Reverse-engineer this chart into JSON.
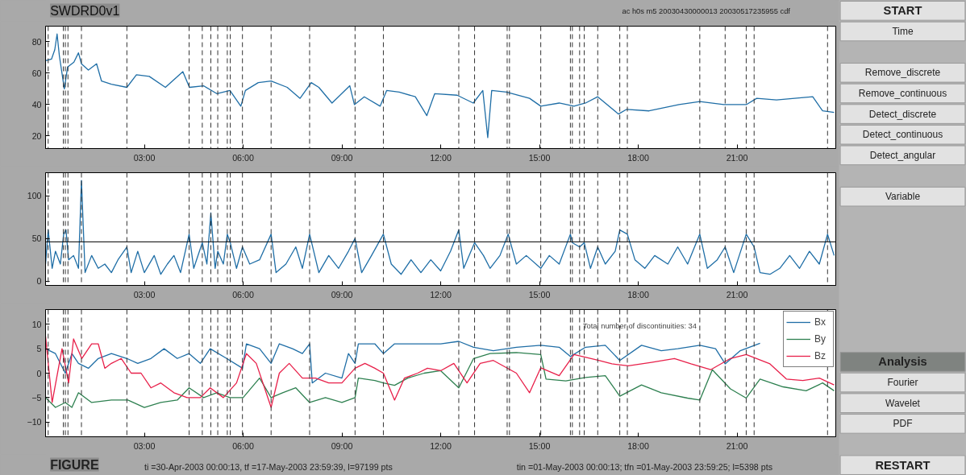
{
  "chart_data": [
    {
      "type": "line",
      "title": "SWDRD0v1",
      "subtitle": "ac h0s m5 20030430000013 20030517235955 cdf",
      "xlim": [
        0,
        24
      ],
      "ylim": [
        12,
        90
      ],
      "yticks": [
        20,
        40,
        60,
        80
      ],
      "xticks": [
        {
          "value": 3,
          "label": "03:00"
        },
        {
          "value": 6,
          "label": "06:00"
        },
        {
          "value": 9,
          "label": "09:00"
        },
        {
          "value": 12,
          "label": "12:00"
        },
        {
          "value": 15,
          "label": "15:00"
        },
        {
          "value": 18,
          "label": "18:00"
        },
        {
          "value": 21,
          "label": "21:00"
        }
      ],
      "grid": false,
      "legend": false,
      "marker": "none",
      "line_style": "solid",
      "series": [
        {
          "color": "#1f6ea6",
          "x": [
            0,
            0.18,
            0.28,
            0.35,
            0.42,
            0.57,
            0.67,
            0.86,
            1.0,
            1.09,
            1.3,
            1.55,
            1.7,
            2.0,
            2.47,
            2.76,
            3.15,
            3.64,
            4.17,
            4.37,
            4.8,
            5.2,
            5.6,
            5.93,
            6.07,
            6.46,
            6.85,
            7.34,
            7.73,
            8.07,
            8.3,
            8.7,
            9.24,
            9.38,
            9.68,
            10.16,
            10.36,
            10.74,
            11.23,
            11.58,
            11.82,
            12.5,
            12.99,
            13.28,
            13.43,
            13.55,
            14.0,
            14.7,
            15.04,
            15.6,
            16.05,
            16.4,
            16.77,
            17.4,
            17.65,
            18.33,
            19.24,
            19.87,
            20.6,
            21.28,
            21.6,
            22.2,
            23.3,
            23.6,
            23.95
          ],
          "values": [
            68,
            69,
            75,
            85,
            71,
            50,
            64,
            67,
            73,
            66,
            62,
            66,
            55,
            53,
            51,
            59,
            58,
            51,
            61,
            51,
            52,
            47,
            49,
            39,
            49,
            54,
            55,
            51,
            44,
            54,
            51,
            41,
            52,
            40,
            45,
            39,
            49,
            48,
            45,
            33,
            47,
            46,
            41,
            49,
            19,
            49,
            48,
            44,
            39,
            41,
            39,
            41,
            45,
            34,
            37,
            36,
            40,
            42,
            40,
            40,
            44,
            43,
            45,
            36,
            35
          ]
        }
      ],
      "ref_lines": [
        {
          "axis": "x",
          "value": 0.08,
          "color": "#333333",
          "line_style": "dashed"
        },
        {
          "axis": "x",
          "value": 0.54,
          "color": "#333333",
          "line_style": "dashed"
        },
        {
          "axis": "x",
          "value": 0.6,
          "color": "#333333",
          "line_style": "dashed"
        },
        {
          "axis": "x",
          "value": 0.68,
          "color": "#333333",
          "line_style": "dashed"
        },
        {
          "axis": "x",
          "value": 1.09,
          "color": "#333333",
          "line_style": "dashed"
        },
        {
          "axis": "x",
          "value": 2.47,
          "color": "#333333",
          "line_style": "dashed"
        },
        {
          "axis": "x",
          "value": 4.36,
          "color": "#333333",
          "line_style": "dashed"
        },
        {
          "axis": "x",
          "value": 4.76,
          "color": "#333333",
          "line_style": "dashed"
        },
        {
          "axis": "x",
          "value": 5.02,
          "color": "#333333",
          "line_style": "dashed"
        },
        {
          "axis": "x",
          "value": 5.23,
          "color": "#333333",
          "line_style": "dashed"
        },
        {
          "axis": "x",
          "value": 5.52,
          "color": "#333333",
          "line_style": "dashed"
        },
        {
          "axis": "x",
          "value": 5.61,
          "color": "#333333",
          "line_style": "dashed"
        },
        {
          "axis": "x",
          "value": 5.98,
          "color": "#333333",
          "line_style": "dashed"
        },
        {
          "axis": "x",
          "value": 6.85,
          "color": "#333333",
          "line_style": "dashed"
        },
        {
          "axis": "x",
          "value": 8.02,
          "color": "#333333",
          "line_style": "dashed"
        },
        {
          "axis": "x",
          "value": 9.4,
          "color": "#333333",
          "line_style": "dashed"
        },
        {
          "axis": "x",
          "value": 10.26,
          "color": "#333333",
          "line_style": "dashed"
        },
        {
          "axis": "x",
          "value": 12.55,
          "color": "#333333",
          "line_style": "dashed"
        },
        {
          "axis": "x",
          "value": 13.03,
          "color": "#333333",
          "line_style": "dashed"
        },
        {
          "axis": "x",
          "value": 14.02,
          "color": "#333333",
          "line_style": "dashed"
        },
        {
          "axis": "x",
          "value": 14.09,
          "color": "#333333",
          "line_style": "dashed"
        },
        {
          "axis": "x",
          "value": 15.04,
          "color": "#333333",
          "line_style": "dashed"
        },
        {
          "axis": "x",
          "value": 15.94,
          "color": "#333333",
          "line_style": "dashed"
        },
        {
          "axis": "x",
          "value": 16.0,
          "color": "#333333",
          "line_style": "dashed"
        },
        {
          "axis": "x",
          "value": 16.22,
          "color": "#333333",
          "line_style": "dashed"
        },
        {
          "axis": "x",
          "value": 16.36,
          "color": "#333333",
          "line_style": "dashed"
        },
        {
          "axis": "x",
          "value": 16.77,
          "color": "#333333",
          "line_style": "dashed"
        },
        {
          "axis": "x",
          "value": 17.44,
          "color": "#333333",
          "line_style": "dashed"
        },
        {
          "axis": "x",
          "value": 17.67,
          "color": "#333333",
          "line_style": "dashed"
        },
        {
          "axis": "x",
          "value": 19.87,
          "color": "#333333",
          "line_style": "dashed"
        },
        {
          "axis": "x",
          "value": 20.64,
          "color": "#333333",
          "line_style": "dashed"
        },
        {
          "axis": "x",
          "value": 21.28,
          "color": "#333333",
          "line_style": "dashed"
        },
        {
          "axis": "x",
          "value": 21.52,
          "color": "#333333",
          "line_style": "dashed"
        },
        {
          "axis": "x",
          "value": 23.75,
          "color": "#333333",
          "line_style": "dashed"
        }
      ]
    },
    {
      "type": "line",
      "xlim": [
        0,
        24
      ],
      "ylim": [
        -5,
        127
      ],
      "yticks": [
        0,
        50,
        100
      ],
      "xticks": [
        {
          "value": 3,
          "label": "03:00"
        },
        {
          "value": 6,
          "label": "06:00"
        },
        {
          "value": 9,
          "label": "09:00"
        },
        {
          "value": 12,
          "label": "12:00"
        },
        {
          "value": 15,
          "label": "15:00"
        },
        {
          "value": 18,
          "label": "18:00"
        },
        {
          "value": 21,
          "label": "21:00"
        }
      ],
      "grid": false,
      "legend": false,
      "marker": "none",
      "line_style": "solid",
      "series": [
        {
          "color": "#1f6ea6",
          "x": [
            0,
            0.08,
            0.2,
            0.3,
            0.45,
            0.55,
            0.62,
            0.7,
            0.85,
            1.0,
            1.09,
            1.2,
            1.4,
            1.6,
            1.8,
            2.0,
            2.2,
            2.47,
            2.6,
            2.8,
            3.0,
            3.3,
            3.5,
            3.7,
            3.9,
            4.1,
            4.36,
            4.5,
            4.76,
            4.9,
            5.02,
            5.15,
            5.23,
            5.4,
            5.52,
            5.61,
            5.8,
            5.98,
            6.2,
            6.5,
            6.85,
            7.0,
            7.3,
            7.6,
            7.8,
            8.02,
            8.3,
            8.6,
            8.9,
            9.2,
            9.4,
            9.6,
            9.9,
            10.26,
            10.5,
            10.8,
            11.1,
            11.4,
            11.7,
            12.0,
            12.3,
            12.55,
            12.7,
            13.03,
            13.3,
            13.5,
            13.8,
            14.05,
            14.3,
            14.6,
            15.04,
            15.3,
            15.6,
            15.94,
            16.0,
            16.22,
            16.36,
            16.55,
            16.77,
            17.0,
            17.3,
            17.44,
            17.67,
            17.9,
            18.2,
            18.5,
            18.9,
            19.2,
            19.5,
            19.87,
            20.1,
            20.4,
            20.64,
            20.9,
            21.28,
            21.52,
            21.7,
            22.0,
            22.3,
            22.6,
            22.9,
            23.2,
            23.5,
            23.75,
            23.95
          ],
          "values": [
            20,
            60,
            15,
            35,
            20,
            55,
            60,
            25,
            30,
            15,
            118,
            10,
            30,
            15,
            20,
            10,
            25,
            40,
            10,
            35,
            10,
            30,
            8,
            20,
            30,
            10,
            55,
            15,
            45,
            20,
            80,
            15,
            35,
            20,
            55,
            45,
            15,
            40,
            20,
            25,
            55,
            10,
            20,
            40,
            15,
            55,
            10,
            30,
            15,
            35,
            50,
            10,
            30,
            55,
            20,
            8,
            25,
            10,
            25,
            12,
            35,
            60,
            15,
            45,
            30,
            15,
            30,
            55,
            20,
            30,
            15,
            30,
            20,
            55,
            45,
            40,
            45,
            15,
            40,
            20,
            35,
            60,
            55,
            25,
            15,
            30,
            20,
            40,
            20,
            55,
            15,
            25,
            40,
            10,
            55,
            40,
            10,
            8,
            15,
            30,
            15,
            35,
            20,
            55,
            30
          ]
        }
      ],
      "ref_lines": [
        {
          "axis": "y",
          "value": 46,
          "color": "#000000",
          "line_style": "solid"
        },
        {
          "axis": "x",
          "value": 0.08,
          "color": "#333333",
          "line_style": "dashed"
        },
        {
          "axis": "x",
          "value": 0.54,
          "color": "#333333",
          "line_style": "dashed"
        },
        {
          "axis": "x",
          "value": 0.6,
          "color": "#333333",
          "line_style": "dashed"
        },
        {
          "axis": "x",
          "value": 0.68,
          "color": "#333333",
          "line_style": "dashed"
        },
        {
          "axis": "x",
          "value": 1.09,
          "color": "#333333",
          "line_style": "dashed"
        },
        {
          "axis": "x",
          "value": 2.47,
          "color": "#333333",
          "line_style": "dashed"
        },
        {
          "axis": "x",
          "value": 4.36,
          "color": "#333333",
          "line_style": "dashed"
        },
        {
          "axis": "x",
          "value": 4.76,
          "color": "#333333",
          "line_style": "dashed"
        },
        {
          "axis": "x",
          "value": 5.02,
          "color": "#333333",
          "line_style": "dashed"
        },
        {
          "axis": "x",
          "value": 5.23,
          "color": "#333333",
          "line_style": "dashed"
        },
        {
          "axis": "x",
          "value": 5.52,
          "color": "#333333",
          "line_style": "dashed"
        },
        {
          "axis": "x",
          "value": 5.61,
          "color": "#333333",
          "line_style": "dashed"
        },
        {
          "axis": "x",
          "value": 5.98,
          "color": "#333333",
          "line_style": "dashed"
        },
        {
          "axis": "x",
          "value": 6.85,
          "color": "#333333",
          "line_style": "dashed"
        },
        {
          "axis": "x",
          "value": 8.02,
          "color": "#333333",
          "line_style": "dashed"
        },
        {
          "axis": "x",
          "value": 9.4,
          "color": "#333333",
          "line_style": "dashed"
        },
        {
          "axis": "x",
          "value": 10.26,
          "color": "#333333",
          "line_style": "dashed"
        },
        {
          "axis": "x",
          "value": 12.55,
          "color": "#333333",
          "line_style": "dashed"
        },
        {
          "axis": "x",
          "value": 13.03,
          "color": "#333333",
          "line_style": "dashed"
        },
        {
          "axis": "x",
          "value": 14.02,
          "color": "#333333",
          "line_style": "dashed"
        },
        {
          "axis": "x",
          "value": 14.09,
          "color": "#333333",
          "line_style": "dashed"
        },
        {
          "axis": "x",
          "value": 15.04,
          "color": "#333333",
          "line_style": "dashed"
        },
        {
          "axis": "x",
          "value": 15.94,
          "color": "#333333",
          "line_style": "dashed"
        },
        {
          "axis": "x",
          "value": 16.0,
          "color": "#333333",
          "line_style": "dashed"
        },
        {
          "axis": "x",
          "value": 16.22,
          "color": "#333333",
          "line_style": "dashed"
        },
        {
          "axis": "x",
          "value": 16.36,
          "color": "#333333",
          "line_style": "dashed"
        },
        {
          "axis": "x",
          "value": 16.77,
          "color": "#333333",
          "line_style": "dashed"
        },
        {
          "axis": "x",
          "value": 17.44,
          "color": "#333333",
          "line_style": "dashed"
        },
        {
          "axis": "x",
          "value": 17.67,
          "color": "#333333",
          "line_style": "dashed"
        },
        {
          "axis": "x",
          "value": 19.87,
          "color": "#333333",
          "line_style": "dashed"
        },
        {
          "axis": "x",
          "value": 20.64,
          "color": "#333333",
          "line_style": "dashed"
        },
        {
          "axis": "x",
          "value": 21.28,
          "color": "#333333",
          "line_style": "dashed"
        },
        {
          "axis": "x",
          "value": 21.52,
          "color": "#333333",
          "line_style": "dashed"
        },
        {
          "axis": "x",
          "value": 23.75,
          "color": "#333333",
          "line_style": "dashed"
        }
      ]
    },
    {
      "type": "line",
      "xlim": [
        0,
        24
      ],
      "ylim": [
        -13,
        13
      ],
      "yticks": [
        -10,
        -5,
        0,
        5,
        10
      ],
      "xticks": [
        {
          "value": 3,
          "label": "03:00"
        },
        {
          "value": 6,
          "label": "06:00"
        },
        {
          "value": 9,
          "label": "09:00"
        },
        {
          "value": 12,
          "label": "12:00"
        },
        {
          "value": 15,
          "label": "15:00"
        },
        {
          "value": 18,
          "label": "18:00"
        },
        {
          "value": 21,
          "label": "21:00"
        }
      ],
      "grid": false,
      "legend": "top right",
      "marker": "none",
      "line_style": "solid",
      "annotations": [
        "Total number of discontinuities: 34",
        "FIGURE",
        "ti =30-Apr-2003 00:00:13, tf =17-May-2003 23:59:39, l=97199 pts",
        "tin =01-May-2003 00:00:13; tfn =01-May-2003 23:59:25; l=5398 pts"
      ],
      "series": [
        {
          "name": "Bx",
          "color": "#1f6ea6",
          "x": [
            0,
            0.3,
            0.6,
            0.8,
            1.0,
            1.3,
            1.6,
            2.0,
            2.47,
            2.8,
            3.2,
            3.6,
            4.0,
            4.36,
            4.7,
            5.0,
            5.5,
            5.98,
            6.1,
            6.5,
            6.85,
            7.1,
            7.5,
            7.8,
            8.02,
            8.1,
            8.5,
            9.0,
            9.2,
            9.4,
            9.5,
            10.0,
            10.26,
            10.6,
            11.0,
            11.5,
            12.0,
            12.55,
            13.0,
            13.6,
            14.3,
            15.04,
            15.6,
            15.94,
            16.4,
            17.0,
            17.44,
            18.1,
            18.7,
            19.2,
            19.87,
            20.35,
            20.64,
            21.1,
            21.7
          ],
          "values": [
            5,
            4,
            0,
            4,
            2,
            1,
            3,
            4,
            3,
            2,
            3,
            5,
            3,
            4,
            2,
            5,
            3,
            1,
            6,
            5,
            2,
            6,
            5,
            4,
            6,
            -2,
            0,
            -1,
            4,
            2,
            6,
            6,
            4,
            6,
            6,
            6,
            6,
            6.5,
            5.3,
            4.6,
            5.3,
            5.7,
            5.3,
            3.4,
            5.3,
            5.7,
            2.6,
            5.7,
            4.6,
            5,
            5.7,
            5,
            1.9,
            4.6,
            6.1
          ]
        },
        {
          "name": "By",
          "color": "#2e8050",
          "x": [
            0,
            0.3,
            0.6,
            0.8,
            1.0,
            1.4,
            2.0,
            2.5,
            3.0,
            3.5,
            4.0,
            4.36,
            4.8,
            5.2,
            5.6,
            6.0,
            6.5,
            6.85,
            7.2,
            7.6,
            8.02,
            8.5,
            9.0,
            9.4,
            9.5,
            10.0,
            10.26,
            10.6,
            11.0,
            11.5,
            12.0,
            12.55,
            13.0,
            13.5,
            14.3,
            15.04,
            15.2,
            15.8,
            16.4,
            17.0,
            17.44,
            18.1,
            18.7,
            19.5,
            19.87,
            20.25,
            20.8,
            21.28,
            21.7,
            22.4,
            23.1,
            23.6,
            23.95
          ],
          "values": [
            -5,
            -7,
            -6,
            -7,
            -4,
            -6,
            -5.5,
            -5.5,
            -7,
            -6,
            -5.5,
            -3,
            -5,
            -4,
            -5,
            -5,
            -1,
            -5,
            -4,
            -3,
            -6,
            -5,
            -6,
            -5,
            -1,
            -1.5,
            -2,
            -2.5,
            -1,
            0,
            0.5,
            -3,
            3,
            4,
            4.2,
            3.8,
            -1.2,
            -1.6,
            -0.9,
            -0.5,
            -4.7,
            -2.4,
            -4,
            -5.1,
            -5.5,
            0.7,
            -3.2,
            -5.1,
            -1.2,
            -2.8,
            -3.6,
            -2,
            -3.6
          ]
        },
        {
          "name": "Bz",
          "color": "#e8204a",
          "x": [
            0,
            0.2,
            0.5,
            0.7,
            0.85,
            1.1,
            1.4,
            1.6,
            1.8,
            2.0,
            2.3,
            2.6,
            2.9,
            3.2,
            3.5,
            3.9,
            4.3,
            4.7,
            5.0,
            5.4,
            5.8,
            6.1,
            6.4,
            6.85,
            7.1,
            7.4,
            7.8,
            8.2,
            8.6,
            9.0,
            9.4,
            9.7,
            10.0,
            10.26,
            10.6,
            10.9,
            11.3,
            11.6,
            12.0,
            12.4,
            12.8,
            13.2,
            13.6,
            14.3,
            14.7,
            15.04,
            15.6,
            16.05,
            16.8,
            17.2,
            17.7,
            18.4,
            19.1,
            19.6,
            20.2,
            20.8,
            21.28,
            22.0,
            22.5,
            23.0,
            23.5,
            23.95
          ],
          "values": [
            7.5,
            -6,
            5,
            -2,
            7,
            3,
            6,
            6,
            1,
            2,
            3,
            0,
            0,
            -3,
            -2,
            -4,
            -5,
            -5,
            -3,
            -5,
            -2,
            4,
            2,
            -7,
            0,
            2,
            -1,
            -1,
            -2,
            -2,
            1,
            2,
            1,
            0,
            -5.5,
            -1,
            0,
            1,
            0.5,
            2,
            -2,
            2,
            2.6,
            0,
            -4,
            1.1,
            -0.5,
            3.8,
            2.6,
            1.9,
            1.5,
            2.2,
            3,
            1.9,
            0.7,
            3,
            3.8,
            1.9,
            -1.2,
            -1.5,
            -1.0,
            -2.4
          ]
        }
      ],
      "ref_lines": [
        {
          "axis": "x",
          "value": 0.08,
          "color": "#333333",
          "line_style": "dashed"
        },
        {
          "axis": "x",
          "value": 0.54,
          "color": "#333333",
          "line_style": "dashed"
        },
        {
          "axis": "x",
          "value": 0.6,
          "color": "#333333",
          "line_style": "dashed"
        },
        {
          "axis": "x",
          "value": 0.68,
          "color": "#333333",
          "line_style": "dashed"
        },
        {
          "axis": "x",
          "value": 1.09,
          "color": "#333333",
          "line_style": "dashed"
        },
        {
          "axis": "x",
          "value": 2.47,
          "color": "#333333",
          "line_style": "dashed"
        },
        {
          "axis": "x",
          "value": 4.36,
          "color": "#333333",
          "line_style": "dashed"
        },
        {
          "axis": "x",
          "value": 4.76,
          "color": "#333333",
          "line_style": "dashed"
        },
        {
          "axis": "x",
          "value": 5.02,
          "color": "#333333",
          "line_style": "dashed"
        },
        {
          "axis": "x",
          "value": 5.23,
          "color": "#333333",
          "line_style": "dashed"
        },
        {
          "axis": "x",
          "value": 5.52,
          "color": "#333333",
          "line_style": "dashed"
        },
        {
          "axis": "x",
          "value": 5.61,
          "color": "#333333",
          "line_style": "dashed"
        },
        {
          "axis": "x",
          "value": 5.98,
          "color": "#333333",
          "line_style": "dashed"
        },
        {
          "axis": "x",
          "value": 6.85,
          "color": "#333333",
          "line_style": "dashed"
        },
        {
          "axis": "x",
          "value": 8.02,
          "color": "#333333",
          "line_style": "dashed"
        },
        {
          "axis": "x",
          "value": 9.4,
          "color": "#333333",
          "line_style": "dashed"
        },
        {
          "axis": "x",
          "value": 10.26,
          "color": "#333333",
          "line_style": "dashed"
        },
        {
          "axis": "x",
          "value": 12.55,
          "color": "#333333",
          "line_style": "dashed"
        },
        {
          "axis": "x",
          "value": 13.03,
          "color": "#333333",
          "line_style": "dashed"
        },
        {
          "axis": "x",
          "value": 14.02,
          "color": "#333333",
          "line_style": "dashed"
        },
        {
          "axis": "x",
          "value": 14.09,
          "color": "#333333",
          "line_style": "dashed"
        },
        {
          "axis": "x",
          "value": 15.04,
          "color": "#333333",
          "line_style": "dashed"
        },
        {
          "axis": "x",
          "value": 15.94,
          "color": "#333333",
          "line_style": "dashed"
        },
        {
          "axis": "x",
          "value": 16.0,
          "color": "#333333",
          "line_style": "dashed"
        },
        {
          "axis": "x",
          "value": 16.22,
          "color": "#333333",
          "line_style": "dashed"
        },
        {
          "axis": "x",
          "value": 16.36,
          "color": "#333333",
          "line_style": "dashed"
        },
        {
          "axis": "x",
          "value": 16.77,
          "color": "#333333",
          "line_style": "dashed"
        },
        {
          "axis": "x",
          "value": 17.44,
          "color": "#333333",
          "line_style": "dashed"
        },
        {
          "axis": "x",
          "value": 17.67,
          "color": "#333333",
          "line_style": "dashed"
        },
        {
          "axis": "x",
          "value": 19.87,
          "color": "#333333",
          "line_style": "dashed"
        },
        {
          "axis": "x",
          "value": 20.64,
          "color": "#333333",
          "line_style": "dashed"
        },
        {
          "axis": "x",
          "value": 21.28,
          "color": "#333333",
          "line_style": "dashed"
        },
        {
          "axis": "x",
          "value": 21.52,
          "color": "#333333",
          "line_style": "dashed"
        },
        {
          "axis": "x",
          "value": 23.75,
          "color": "#333333",
          "line_style": "dashed"
        }
      ]
    },
    {
      "type": "other",
      "annotations": [
        "START",
        "Time",
        "Remove_discrete",
        "Remove_continuous",
        "Detect_discrete",
        "Detect_continuous",
        "Detect_angular",
        "Variable",
        "Analysis",
        "Fourier",
        "Wavelet",
        "PDF",
        "RESTART"
      ]
    }
  ]
}
